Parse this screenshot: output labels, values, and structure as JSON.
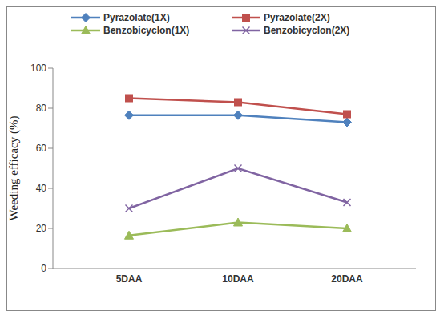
{
  "chart_data": {
    "type": "line",
    "y_label": "Weeding efficacy (%)",
    "categories": [
      "5DAA",
      "10DAA",
      "20DAA"
    ],
    "ylim": [
      0,
      100
    ],
    "yticks": [
      0,
      20,
      40,
      60,
      80,
      100
    ],
    "grid": false,
    "legend": "top",
    "series": [
      {
        "name": "Pyrazolate(1X)",
        "color": "#4f81bd",
        "marker": "diamond",
        "values": [
          76.5,
          76.5,
          73
        ]
      },
      {
        "name": "Pyrazolate(2X)",
        "color": "#c0504d",
        "marker": "square",
        "values": [
          85,
          83,
          77
        ]
      },
      {
        "name": "Benzobicyclon(1X)",
        "color": "#9bbb59",
        "marker": "triangle",
        "values": [
          16.5,
          23,
          20
        ]
      },
      {
        "name": "Benzobicyclon(2X)",
        "color": "#8064a2",
        "marker": "x",
        "values": [
          30,
          50,
          33
        ]
      }
    ]
  }
}
